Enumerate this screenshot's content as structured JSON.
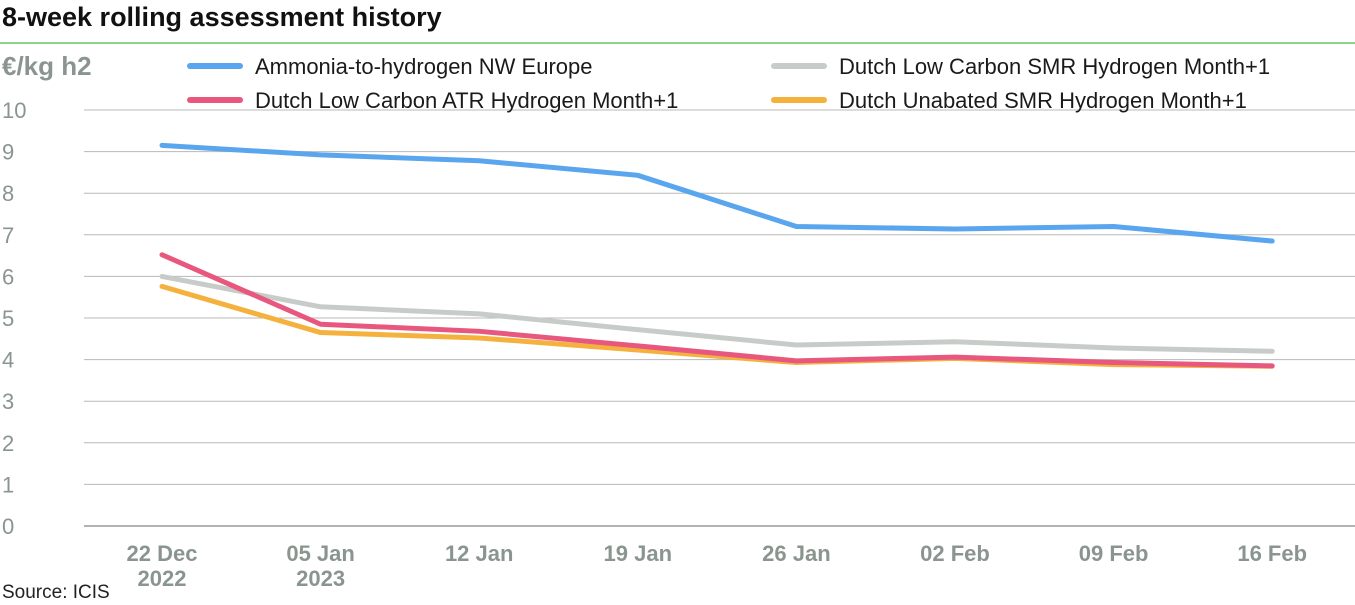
{
  "header": {
    "title": "8-week rolling assessment history"
  },
  "footer": {
    "source": "Source: ICIS"
  },
  "chart_data": {
    "type": "line",
    "title": "8-week rolling assessment history",
    "ylabel": "€/kg h2",
    "xlabel": "",
    "ylim": [
      0,
      10
    ],
    "yticks": [
      "0",
      "1",
      "2",
      "3",
      "4",
      "5",
      "6",
      "7",
      "8",
      "9",
      "10"
    ],
    "grid": true,
    "legend_position": "top",
    "categories": [
      [
        "22 Dec",
        "2022"
      ],
      [
        "05 Jan",
        "2023"
      ],
      [
        "12 Jan"
      ],
      [
        "19 Jan"
      ],
      [
        "26 Jan"
      ],
      [
        "02 Feb"
      ],
      [
        "09 Feb"
      ],
      [
        "16 Feb"
      ]
    ],
    "series": [
      {
        "name": "Ammonia-to-hydrogen NW Europe",
        "color": "#5aa6ee",
        "values": [
          9.15,
          8.92,
          8.78,
          8.43,
          7.2,
          7.14,
          7.2,
          6.85
        ]
      },
      {
        "name": "Dutch Low Carbon SMR Hydrogen Month+1",
        "color": "#c8ccc8",
        "values": [
          6.0,
          5.27,
          5.1,
          4.72,
          4.35,
          4.43,
          4.28,
          4.2
        ]
      },
      {
        "name": "Dutch Low Carbon ATR Hydrogen Month+1",
        "color": "#e8577e",
        "values": [
          6.52,
          4.85,
          4.68,
          4.33,
          3.97,
          4.06,
          3.93,
          3.85
        ]
      },
      {
        "name": "Dutch Unabated SMR Hydrogen Month+1",
        "color": "#f5b13d",
        "values": [
          5.76,
          4.65,
          4.52,
          4.23,
          3.93,
          4.03,
          3.88,
          3.84
        ]
      }
    ],
    "legend_order": [
      0,
      2,
      1,
      3
    ]
  }
}
